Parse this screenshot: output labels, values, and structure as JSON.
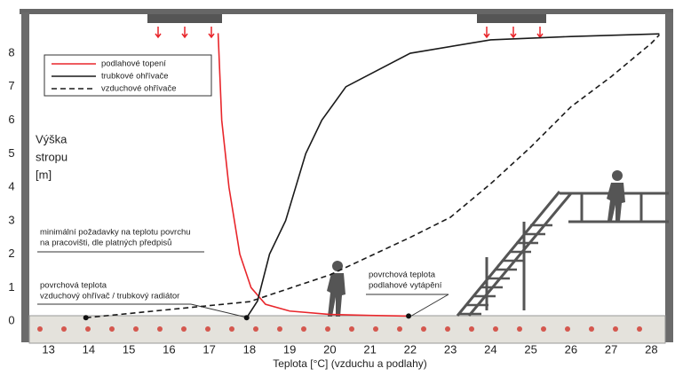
{
  "chart_data": {
    "type": "line",
    "x_label": "Teplota [°C] (vzduchu a podlahy)",
    "y_label_lines": [
      "Výška",
      "stropu",
      "[m]"
    ],
    "xlim": [
      12.5,
      28.5
    ],
    "ylim": [
      -0.66,
      9.22
    ],
    "xticks": [
      13,
      14,
      15,
      16,
      17,
      18,
      19,
      20,
      21,
      22,
      23,
      24,
      25,
      26,
      27,
      28
    ],
    "yticks": [
      0,
      1,
      2,
      3,
      4,
      5,
      6,
      7,
      8
    ],
    "legend": "upper left",
    "grid": false,
    "series": [
      {
        "name": "podlahové topení",
        "color": "#e8262b",
        "dash": false,
        "x": [
          17.22,
          17.31,
          17.49,
          17.76,
          18.04,
          18.4,
          19,
          20,
          21,
          21.96
        ],
        "values": [
          8.6,
          6,
          4,
          2,
          1,
          0.5,
          0.3,
          0.2,
          0.17,
          0.15
        ]
      },
      {
        "name": "trubkové ohřívače",
        "color": "#1a1a1a",
        "dash": false,
        "x": [
          17.93,
          18.2,
          18.5,
          18.9,
          19.15,
          19.4,
          19.8,
          20.4,
          22,
          24,
          26,
          28.2
        ],
        "values": [
          0.1,
          0.6,
          2,
          3,
          4,
          5,
          6,
          7,
          8,
          8.4,
          8.5,
          8.58
        ]
      },
      {
        "name": "vzduchové ohřívače",
        "color": "#1a1a1a",
        "dash": true,
        "x": [
          13.93,
          18,
          20,
          22,
          23,
          24,
          25,
          26,
          27,
          28,
          28.2
        ],
        "values": [
          0.1,
          0.58,
          1.38,
          2.5,
          3.1,
          4.1,
          5.2,
          6.4,
          7.3,
          8.3,
          8.55
        ]
      }
    ],
    "annotations": [
      {
        "lines": [
          "minimální požadavky na teplotu povrchu",
          "na pracovišti, dle platných předpisů"
        ]
      },
      {
        "lines": [
          "povrchová teplota",
          "vzduchový ohřívač / trubkový radiátor"
        ]
      },
      {
        "lines": [
          "povrchová teplota",
          "podlahové vytápění"
        ]
      }
    ]
  }
}
